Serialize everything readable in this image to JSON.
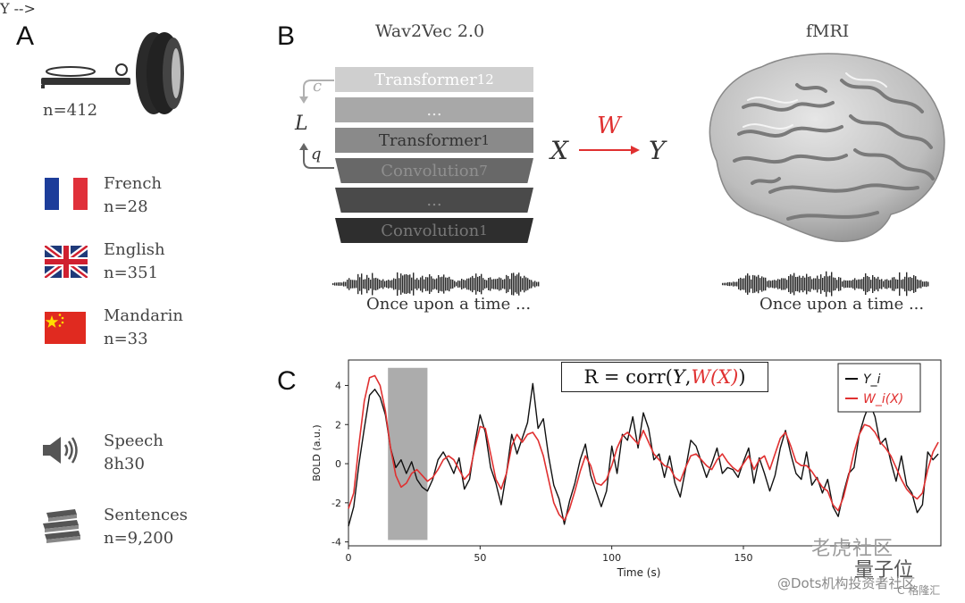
{
  "panels": {
    "a": "A",
    "b": "B",
    "c": "C"
  },
  "scanner": {
    "count": "n=412"
  },
  "languages": [
    {
      "name": "French",
      "count": "n=28",
      "flag": "france-flag-icon"
    },
    {
      "name": "English",
      "count": "n=351",
      "flag": "uk-flag-icon"
    },
    {
      "name": "Mandarin",
      "count": "n=33",
      "flag": "china-flag-icon"
    }
  ],
  "stats": [
    {
      "label": "Speech",
      "value": "8h30",
      "icon": "speaker-icon"
    },
    {
      "label": "Sentences",
      "value": "n=9,200",
      "icon": "books-icon"
    }
  ],
  "model": {
    "title": "Wav2Vec 2.0",
    "layers": [
      {
        "name": "Transformer",
        "sub": "12"
      },
      {
        "name": "...",
        "sub": ""
      },
      {
        "name": "Transformer",
        "sub": "1"
      },
      {
        "name": "Convolution",
        "sub": "7"
      },
      {
        "name": "...",
        "sub": ""
      },
      {
        "name": "Convolution",
        "sub": "1"
      }
    ],
    "loss_symbols": {
      "c": "c",
      "L": "L",
      "q": "q"
    },
    "caption": "Once upon a time ..."
  },
  "mapping": {
    "X": "X",
    "W": "W",
    "Y": "Y"
  },
  "brain": {
    "title": "fMRI",
    "caption": "Once upon a time ..."
  },
  "formula": {
    "prefix": "R = corr(",
    "Y": "Y",
    "comma": ", ",
    "WX": "W(X)",
    "suffix": ")"
  },
  "colors": {
    "red": "#e03030",
    "black": "#111111",
    "gray_band": "#9e9e9e"
  },
  "chart_data": {
    "type": "line",
    "xlabel": "Time (s)",
    "ylabel": "BOLD (a.u.)",
    "xlim": [
      0,
      225
    ],
    "ylim": [
      -4.2,
      5.3
    ],
    "xticks": [
      0,
      50,
      100,
      150
    ],
    "yticks": [
      4,
      2,
      0,
      -2,
      -4
    ],
    "legend": [
      "Y_i",
      "W_i(X)"
    ],
    "legend_position": "top-right",
    "highlight_band": [
      15,
      30
    ],
    "series": [
      {
        "name": "Y_i",
        "color": "#111111",
        "x": [
          0,
          2,
          4,
          6,
          8,
          10,
          12,
          14,
          16,
          18,
          20,
          22,
          24,
          26,
          28,
          30,
          32,
          34,
          36,
          38,
          40,
          42,
          44,
          46,
          48,
          50,
          52,
          54,
          56,
          58,
          60,
          62,
          64,
          66,
          68,
          70,
          72,
          74,
          76,
          78,
          80,
          82,
          84,
          86,
          88,
          90,
          92,
          94,
          96,
          98,
          100,
          102,
          104,
          106,
          108,
          110,
          112,
          114,
          116,
          118,
          120,
          122,
          124,
          126,
          128,
          130,
          132,
          134,
          136,
          138,
          140,
          142,
          144,
          146,
          148,
          150,
          152,
          154,
          156,
          158,
          160,
          162,
          164,
          166,
          168,
          170,
          172,
          174,
          176,
          178,
          180,
          182,
          184,
          186,
          188,
          190,
          192,
          194,
          196,
          198,
          200,
          202,
          204,
          206,
          208,
          210,
          212,
          214,
          216,
          218,
          220,
          222,
          224
        ],
        "y": [
          -3.2,
          -2.2,
          0,
          1.8,
          3.5,
          3.8,
          3.4,
          2.5,
          0.8,
          -0.2,
          0.2,
          -0.5,
          0.1,
          -0.8,
          -1.2,
          -1.4,
          -0.8,
          0.2,
          0.6,
          0.1,
          -0.5,
          0.3,
          -1.3,
          -0.8,
          1.0,
          2.5,
          1.6,
          -0.2,
          -1.0,
          -2.1,
          -0.5,
          1.5,
          0.5,
          1.3,
          2.1,
          4.1,
          1.8,
          2.3,
          0.4,
          -1.1,
          -1.8,
          -3.1,
          -1.9,
          -1.0,
          0.2,
          1.0,
          -0.6,
          -1.4,
          -2.2,
          -1.4,
          0.9,
          -0.5,
          1.5,
          1.2,
          2.4,
          0.8,
          2.6,
          1.8,
          0.2,
          0.5,
          -0.7,
          0.4,
          -1.0,
          -1.7,
          -0.3,
          1.2,
          0.9,
          0.1,
          -0.7,
          0.0,
          0.8,
          -0.5,
          -0.2,
          -0.3,
          -0.7,
          0.1,
          0.8,
          -1.0,
          0.3,
          -0.5,
          -1.4,
          -0.6,
          0.8,
          1.7,
          0.5,
          -0.5,
          -0.8,
          0.6,
          -1.1,
          -0.7,
          -1.5,
          -0.8,
          -2.2,
          -2.7,
          -1.5,
          -0.5,
          -0.2,
          1.5,
          2.4,
          3.1,
          2.4,
          1.0,
          1.3,
          0.1,
          -0.9,
          0.4,
          -1.1,
          -1.5,
          -2.5,
          -2.1,
          0.6,
          0.2,
          0.5
        ]
      },
      {
        "name": "W_i(X)",
        "color": "#e03030",
        "x": [
          0,
          2,
          4,
          6,
          8,
          10,
          12,
          14,
          16,
          18,
          20,
          22,
          24,
          26,
          28,
          30,
          32,
          34,
          36,
          38,
          40,
          42,
          44,
          46,
          48,
          50,
          52,
          54,
          56,
          58,
          60,
          62,
          64,
          66,
          68,
          70,
          72,
          74,
          76,
          78,
          80,
          82,
          84,
          86,
          88,
          90,
          92,
          94,
          96,
          98,
          100,
          102,
          104,
          106,
          108,
          110,
          112,
          114,
          116,
          118,
          120,
          122,
          124,
          126,
          128,
          130,
          132,
          134,
          136,
          138,
          140,
          142,
          144,
          146,
          148,
          150,
          152,
          154,
          156,
          158,
          160,
          162,
          164,
          166,
          168,
          170,
          172,
          174,
          176,
          178,
          180,
          182,
          184,
          186,
          188,
          190,
          192,
          194,
          196,
          198,
          200,
          202,
          204,
          206,
          208,
          210,
          212,
          214,
          216,
          218,
          220,
          222,
          224
        ],
        "y": [
          -2.3,
          -1.5,
          1.0,
          3.2,
          4.4,
          4.5,
          4.0,
          2.7,
          0.8,
          -0.6,
          -1.2,
          -1.0,
          -0.5,
          -0.3,
          -0.6,
          -0.9,
          -0.7,
          -0.3,
          0.2,
          0.4,
          0.2,
          -0.3,
          -0.8,
          -0.5,
          0.8,
          1.9,
          1.8,
          0.5,
          -0.8,
          -1.3,
          -0.5,
          0.9,
          1.5,
          1.1,
          1.5,
          1.6,
          1.2,
          0.4,
          -0.8,
          -2.0,
          -2.6,
          -2.9,
          -2.3,
          -1.4,
          -0.4,
          0.4,
          -0.1,
          -1.0,
          -1.1,
          -0.8,
          -0.1,
          0.8,
          1.4,
          1.6,
          1.3,
          1.0,
          1.7,
          1.1,
          0.5,
          0.2,
          -0.1,
          -0.2,
          -0.7,
          -0.9,
          -0.2,
          0.4,
          0.5,
          0.2,
          -0.1,
          -0.3,
          0.2,
          0.5,
          0.1,
          -0.2,
          -0.4,
          0.0,
          0.4,
          -0.3,
          0.2,
          0.4,
          -0.3,
          0.5,
          1.3,
          1.6,
          0.9,
          0.1,
          -0.1,
          -0.1,
          -0.4,
          -0.8,
          -1.2,
          -1.4,
          -2.1,
          -2.4,
          -1.7,
          -0.6,
          0.6,
          1.5,
          2.0,
          1.9,
          1.6,
          1.1,
          0.8,
          0.4,
          -0.2,
          -0.8,
          -1.3,
          -1.6,
          -1.8,
          -1.5,
          -0.3,
          0.6,
          1.1
        ]
      }
    ]
  },
  "watermark": {
    "line1": "老虎社区",
    "line2": "量子位",
    "line3": "@Dots机构投资者社区",
    "line4": "C 格隆汇"
  }
}
